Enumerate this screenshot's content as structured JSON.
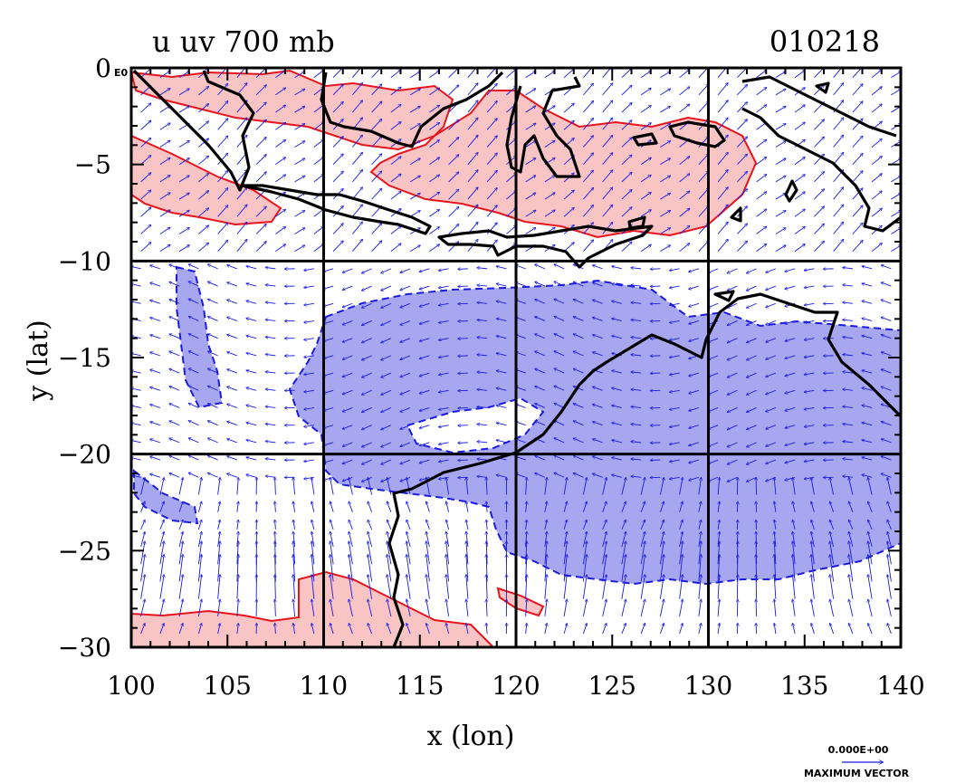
{
  "chart_data": {
    "type": "contour-vector-map",
    "title": "u uv 700 mb",
    "date_label": "010218",
    "origin_label": "0 E0",
    "xlabel": "x (lon)",
    "ylabel": "y (lat)",
    "xlim": [
      100,
      140
    ],
    "ylim": [
      -30,
      0
    ],
    "xticks": [
      100,
      105,
      110,
      115,
      120,
      125,
      130,
      135,
      140
    ],
    "yticks": [
      0,
      -5,
      -10,
      -15,
      -20,
      -25,
      -30
    ],
    "gridlines_x": [
      110,
      120,
      130
    ],
    "gridlines_y": [
      -10,
      -20
    ],
    "vector_legend": {
      "value": "0.000E+00",
      "label": "MAXIMUM VECTOR"
    },
    "colors": {
      "positive_fill": "#f9c4c4",
      "positive_contour": "#e8141c",
      "negative_fill": "#a7a7f0",
      "negative_contour": "#1a1ae0",
      "vectors": "#1a1ae0",
      "coastline": "#000000"
    }
  }
}
